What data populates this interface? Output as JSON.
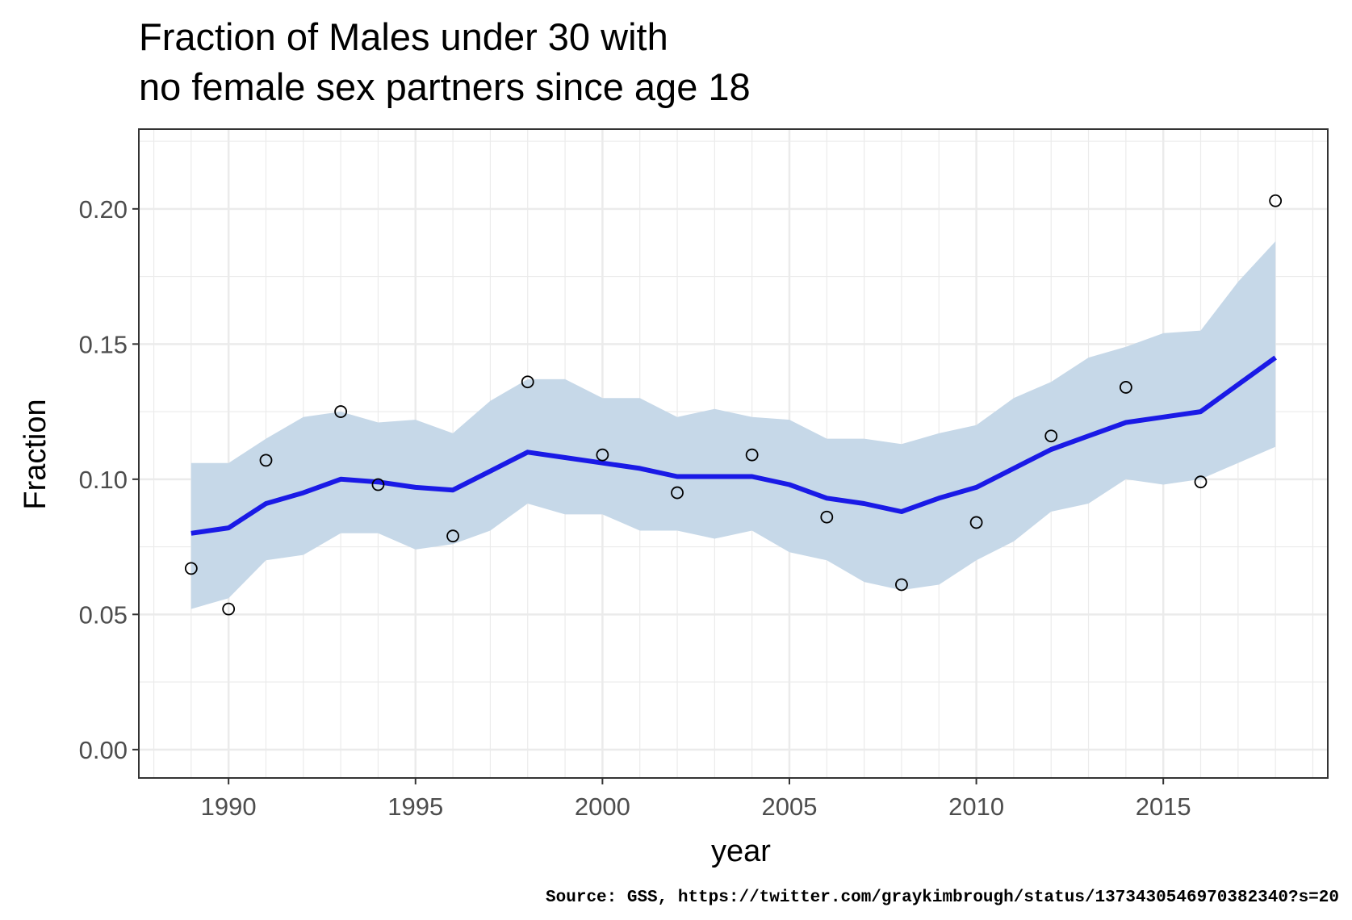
{
  "chart_data": {
    "type": "scatter",
    "title_line1": "Fraction of Males under 30 with",
    "title_line2": "no female sex partners since age 18",
    "xlabel": "year",
    "ylabel": "Fraction",
    "caption": "Source: GSS, https://twitter.com/graykimbrough/status/1373430546970382340?s=20",
    "xlim": [
      1987.6,
      2019.4
    ],
    "ylim": [
      -0.0105,
      0.2295
    ],
    "x_ticks": [
      1990,
      1995,
      2000,
      2005,
      2010,
      2015
    ],
    "x_tick_labels": [
      "1990",
      "1995",
      "2000",
      "2005",
      "2010",
      "2015"
    ],
    "y_ticks": [
      0.0,
      0.05,
      0.1,
      0.15,
      0.2
    ],
    "y_tick_labels": [
      "0.00",
      "0.05",
      "0.10",
      "0.15",
      "0.20"
    ],
    "grid": true,
    "colors": {
      "line": "#1a1ae6",
      "ribbon": "#c6d8e8",
      "grid": "#ebebeb",
      "points": "#000000"
    },
    "points": {
      "x": [
        1989,
        1990,
        1991,
        1993,
        1994,
        1996,
        1998,
        2000,
        2002,
        2004,
        2006,
        2008,
        2010,
        2012,
        2014,
        2016,
        2018
      ],
      "y": [
        0.067,
        0.052,
        0.107,
        0.125,
        0.098,
        0.079,
        0.136,
        0.109,
        0.095,
        0.109,
        0.086,
        0.061,
        0.084,
        0.116,
        0.134,
        0.099,
        0.203
      ]
    },
    "smooth": {
      "x": [
        1989,
        1990,
        1991,
        1992,
        1993,
        1994,
        1995,
        1996,
        1997,
        1998,
        1999,
        2000,
        2001,
        2002,
        2003,
        2004,
        2005,
        2006,
        2007,
        2008,
        2009,
        2010,
        2011,
        2012,
        2013,
        2014,
        2015,
        2016,
        2017,
        2018
      ],
      "y": [
        0.08,
        0.082,
        0.091,
        0.095,
        0.1,
        0.099,
        0.097,
        0.096,
        0.103,
        0.11,
        0.108,
        0.106,
        0.104,
        0.101,
        0.101,
        0.101,
        0.098,
        0.093,
        0.091,
        0.088,
        0.093,
        0.097,
        0.104,
        0.111,
        0.116,
        0.121,
        0.123,
        0.125,
        0.135,
        0.145
      ],
      "lower": [
        0.052,
        0.056,
        0.07,
        0.072,
        0.08,
        0.08,
        0.074,
        0.076,
        0.081,
        0.091,
        0.087,
        0.087,
        0.081,
        0.081,
        0.078,
        0.081,
        0.073,
        0.07,
        0.062,
        0.059,
        0.061,
        0.07,
        0.077,
        0.088,
        0.091,
        0.1,
        0.098,
        0.1,
        0.106,
        0.112
      ],
      "upper": [
        0.106,
        0.106,
        0.115,
        0.123,
        0.125,
        0.121,
        0.122,
        0.117,
        0.129,
        0.137,
        0.137,
        0.13,
        0.13,
        0.123,
        0.126,
        0.123,
        0.122,
        0.115,
        0.115,
        0.113,
        0.117,
        0.12,
        0.13,
        0.136,
        0.145,
        0.149,
        0.154,
        0.155,
        0.173,
        0.188
      ]
    }
  }
}
